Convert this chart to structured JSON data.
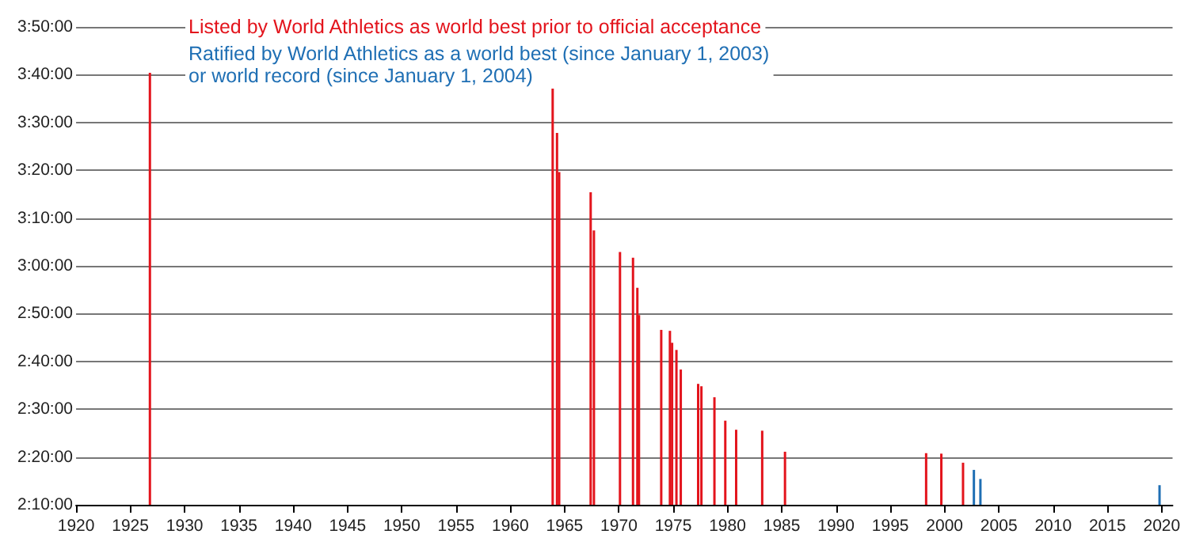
{
  "chart_data": {
    "type": "bar",
    "series": [
      {
        "name": "Listed by World Athletics as world best prior to official acceptance",
        "color": "#e3141c",
        "x": [
          1926.8,
          1963.9,
          1964.3,
          1964.5,
          1967.4,
          1967.7,
          1970.1,
          1971.3,
          1971.7,
          1971.85,
          1973.9,
          1974.7,
          1974.9,
          1975.3,
          1975.7,
          1977.3,
          1977.6,
          1978.8,
          1979.8,
          1980.8,
          1983.2,
          1985.3,
          1998.3,
          1999.7,
          2001.7
        ],
        "values": [
          220.4,
          217.1,
          207.8,
          199.6,
          195.4,
          187.4,
          182.9,
          181.7,
          175.4,
          169.7,
          166.6,
          166.4,
          163.9,
          162.4,
          158.3,
          155.3,
          154.8,
          152.5,
          147.6,
          145.7,
          145.5,
          141.1,
          140.8,
          140.7,
          138.8
        ]
      },
      {
        "name": "Ratified by World Athletics as a world best (since January 1, 2003)\nor world record (since January 1, 2004)",
        "color": "#1f6fb4",
        "x": [
          2002.7,
          2003.3,
          2019.8
        ],
        "values": [
          137.3,
          135.4,
          134.1
        ]
      }
    ],
    "xlim": [
      1920,
      2021
    ],
    "xticks": [
      1920,
      1925,
      1930,
      1935,
      1940,
      1945,
      1950,
      1955,
      1960,
      1965,
      1970,
      1975,
      1980,
      1985,
      1990,
      1995,
      2000,
      2005,
      2010,
      2015,
      2020
    ],
    "ylim": [
      130,
      230
    ],
    "yticks": [
      {
        "value": 130,
        "label": "2:10:00"
      },
      {
        "value": 140,
        "label": "2:20:00"
      },
      {
        "value": 150,
        "label": "2:30:00"
      },
      {
        "value": 160,
        "label": "2:40:00"
      },
      {
        "value": 170,
        "label": "2:50:00"
      },
      {
        "value": 180,
        "label": "3:00:00"
      },
      {
        "value": 190,
        "label": "3:10:00"
      },
      {
        "value": 200,
        "label": "3:20:00"
      },
      {
        "value": 210,
        "label": "3:30:00"
      },
      {
        "value": 220,
        "label": "3:40:00"
      },
      {
        "value": 230,
        "label": "3:50:00"
      }
    ],
    "grid": "y",
    "legend": "top"
  }
}
